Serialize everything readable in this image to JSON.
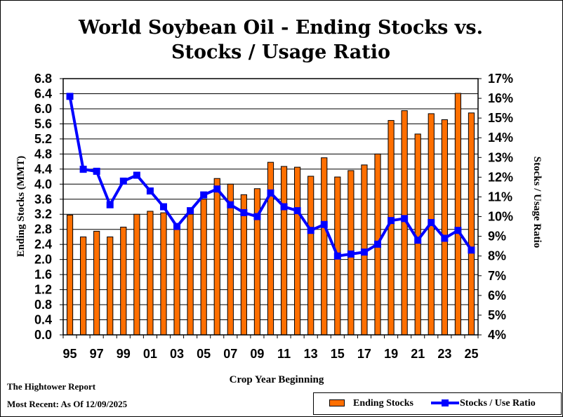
{
  "title_line1": "World Soybean Oil - Ending Stocks vs.",
  "title_line2": "Stocks / Usage Ratio",
  "footer": {
    "source": "The Hightower Report",
    "date": "Most Recent: As Of 12/09/2025"
  },
  "colors": {
    "bars": "#FF6F00",
    "line": "#0000FF",
    "grid": "#000000"
  },
  "chart_data": {
    "type": "bar",
    "title": "World Soybean Oil - Ending Stocks vs. Stocks / Usage Ratio",
    "xlabel": "Crop Year Beginning",
    "ylabel": "Ending Stocks (MMT)",
    "y2label": "Stocks / Usage Ratio",
    "ylim": [
      0,
      6.8
    ],
    "y2lim": [
      4,
      17
    ],
    "y_ticks": [
      "0.0",
      "0.4",
      "0.8",
      "1.2",
      "1.6",
      "2.0",
      "2.4",
      "2.8",
      "3.2",
      "3.6",
      "4.0",
      "4.4",
      "4.8",
      "5.2",
      "5.6",
      "6.0",
      "6.4",
      "6.8"
    ],
    "y2_ticks": [
      "4%",
      "5%",
      "6%",
      "7%",
      "8%",
      "9%",
      "10%",
      "11%",
      "12%",
      "13%",
      "14%",
      "15%",
      "16%",
      "17%"
    ],
    "x_tick_labels": [
      "95",
      "97",
      "99",
      "01",
      "03",
      "05",
      "07",
      "09",
      "11",
      "13",
      "15",
      "17",
      "19",
      "21",
      "23",
      "25"
    ],
    "categories": [
      "1995",
      "1996",
      "1997",
      "1998",
      "1999",
      "2000",
      "2001",
      "2002",
      "2003",
      "2004",
      "2005",
      "2006",
      "2007",
      "2008",
      "2009",
      "2010",
      "2011",
      "2012",
      "2013",
      "2014",
      "2015",
      "2016",
      "2017",
      "2018",
      "2019",
      "2020",
      "2021",
      "2022",
      "2023",
      "2024",
      "2025"
    ],
    "grid": true,
    "legend_position": "bottom-right",
    "series": [
      {
        "name": "Ending Stocks",
        "type": "bar",
        "axis": "left",
        "values": [
          3.18,
          2.6,
          2.75,
          2.6,
          2.86,
          3.2,
          3.28,
          3.24,
          2.9,
          3.2,
          3.6,
          4.15,
          4.0,
          3.72,
          3.88,
          4.58,
          4.47,
          4.45,
          4.21,
          4.7,
          4.19,
          4.36,
          4.51,
          4.8,
          5.69,
          5.95,
          5.33,
          5.87,
          5.71,
          6.41,
          5.89
        ]
      },
      {
        "name": "Stocks / Use Ratio",
        "type": "line",
        "axis": "right",
        "values": [
          16.1,
          12.4,
          12.3,
          10.6,
          11.8,
          12.1,
          11.3,
          10.5,
          9.5,
          10.3,
          11.1,
          11.4,
          10.6,
          10.2,
          10.0,
          11.2,
          10.5,
          10.3,
          9.3,
          9.6,
          8.0,
          8.1,
          8.2,
          8.6,
          9.8,
          9.9,
          8.8,
          9.7,
          8.9,
          9.3,
          8.3
        ]
      }
    ]
  }
}
